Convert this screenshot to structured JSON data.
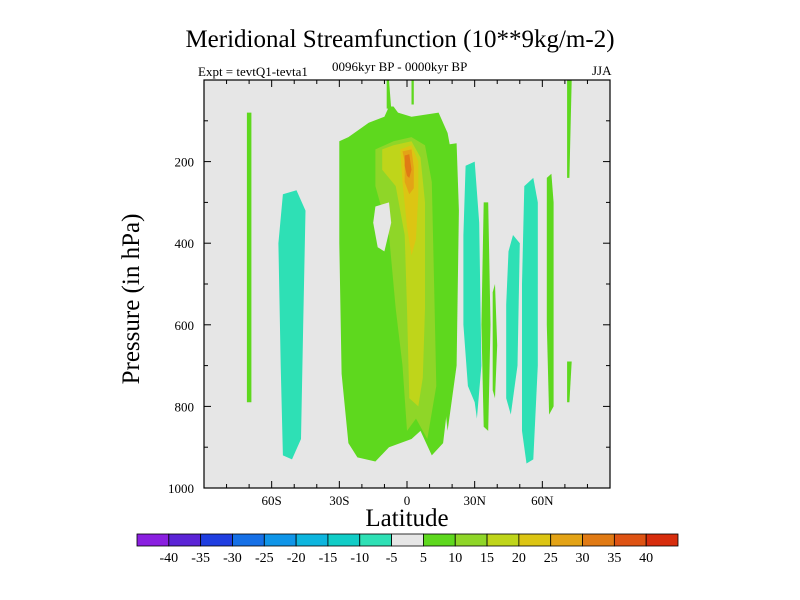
{
  "chart_data": {
    "type": "heatmap",
    "title": "Meridional Streamfunction (10**9kg/m-2)",
    "subtitle": "0096kyr BP - 0000kyr BP",
    "left_label": "Expt = tevtQ1-tevta1",
    "right_label": "JJA",
    "xlabel": "Latitude",
    "ylabel": "Pressure (in hPa)",
    "xlim": [
      -90,
      90
    ],
    "ylim": [
      1000,
      0
    ],
    "x_ticks": [
      {
        "value": -60,
        "label": "60S"
      },
      {
        "value": -30,
        "label": "30S"
      },
      {
        "value": 0,
        "label": "0"
      },
      {
        "value": 30,
        "label": "30N"
      },
      {
        "value": 60,
        "label": "60N"
      }
    ],
    "y_ticks": [
      {
        "value": 200,
        "label": "200"
      },
      {
        "value": 400,
        "label": "400"
      },
      {
        "value": 600,
        "label": "600"
      },
      {
        "value": 800,
        "label": "800"
      },
      {
        "value": 1000,
        "label": "1000"
      }
    ],
    "missing_color": "#e6e6e6",
    "colorbar": {
      "labels": [
        "-40",
        "-35",
        "-30",
        "-25",
        "-20",
        "-15",
        "-10",
        "-5",
        "5",
        "10",
        "15",
        "20",
        "25",
        "30",
        "35",
        "40"
      ],
      "colors": [
        "#8a1fe0",
        "#5b24d6",
        "#1f3ee0",
        "#1670e6",
        "#0f95e8",
        "#0db5de",
        "#11cdc7",
        "#2ee0b5",
        "#e6e6e6",
        "#5ed81e",
        "#8fd628",
        "#bfd51a",
        "#dcc513",
        "#e3a316",
        "#e07a14",
        "#de5313",
        "#d72d0d"
      ]
    },
    "regions": [
      {
        "name": "green-band-58S",
        "level": "5 to 10",
        "color": "#5ed81e",
        "polygon": [
          [
            -71,
            80
          ],
          [
            -69,
            80
          ],
          [
            -69,
            790
          ],
          [
            -71,
            790
          ]
        ]
      },
      {
        "name": "cyan-cell-50S",
        "level": "-10 to -5",
        "color": "#2ee0b5",
        "polygon": [
          [
            -55,
            280
          ],
          [
            -49,
            270
          ],
          [
            -45,
            320
          ],
          [
            -46,
            600
          ],
          [
            -47,
            880
          ],
          [
            -51,
            930
          ],
          [
            -55,
            920
          ],
          [
            -56,
            700
          ],
          [
            -57,
            400
          ]
        ]
      },
      {
        "name": "green-tropics",
        "level": "5 to 10",
        "color": "#5ed81e",
        "polygon": [
          [
            -30,
            150
          ],
          [
            -26,
            140
          ],
          [
            -17,
            105
          ],
          [
            -10,
            90
          ],
          [
            -8,
            65
          ],
          [
            -6,
            65
          ],
          [
            -4,
            80
          ],
          [
            2,
            90
          ],
          [
            14,
            80
          ],
          [
            18,
            130
          ],
          [
            20,
            190
          ],
          [
            20,
            600
          ],
          [
            19,
            750
          ],
          [
            16,
            890
          ],
          [
            11,
            920
          ],
          [
            6,
            860
          ],
          [
            2,
            880
          ],
          [
            -8,
            900
          ],
          [
            -14,
            935
          ],
          [
            -22,
            925
          ],
          [
            -26,
            890
          ],
          [
            -29,
            720
          ],
          [
            -30,
            400
          ]
        ]
      },
      {
        "name": "yellowgreen-core",
        "level": "10 to 15",
        "color": "#8fd628",
        "polygon": [
          [
            -14,
            170
          ],
          [
            -6,
            150
          ],
          [
            2,
            140
          ],
          [
            8,
            160
          ],
          [
            11,
            250
          ],
          [
            12,
            500
          ],
          [
            13,
            750
          ],
          [
            9,
            880
          ],
          [
            4,
            830
          ],
          [
            0,
            860
          ],
          [
            -2,
            700
          ],
          [
            -5,
            560
          ],
          [
            -8,
            380
          ],
          [
            -14,
            260
          ]
        ]
      },
      {
        "name": "yellow-core",
        "level": "15 to 20",
        "color": "#bfd51a",
        "polygon": [
          [
            -11,
            170
          ],
          [
            -6,
            160
          ],
          [
            2,
            150
          ],
          [
            6,
            190
          ],
          [
            8,
            300
          ],
          [
            8,
            560
          ],
          [
            7,
            730
          ],
          [
            5,
            800
          ],
          [
            1,
            780
          ],
          [
            0,
            560
          ],
          [
            -1,
            380
          ],
          [
            -5,
            260
          ],
          [
            -11,
            220
          ]
        ]
      },
      {
        "name": "gold-core",
        "level": "20 to 25",
        "color": "#dcc513",
        "polygon": [
          [
            -3,
            170
          ],
          [
            2,
            160
          ],
          [
            5,
            200
          ],
          [
            5,
            280
          ],
          [
            4,
            390
          ],
          [
            2,
            430
          ],
          [
            0,
            360
          ],
          [
            -2,
            250
          ]
        ]
      },
      {
        "name": "orange-core",
        "level": "25 to 30",
        "color": "#e3a316",
        "polygon": [
          [
            -2,
            175
          ],
          [
            2,
            170
          ],
          [
            3,
            215
          ],
          [
            3,
            265
          ],
          [
            1,
            280
          ],
          [
            -1,
            250
          ],
          [
            -1,
            200
          ]
        ]
      },
      {
        "name": "dark-orange-core",
        "level": "30 to 35",
        "color": "#e07a14",
        "polygon": [
          [
            -1,
            185
          ],
          [
            1,
            182
          ],
          [
            2,
            220
          ],
          [
            1,
            240
          ],
          [
            0,
            235
          ],
          [
            -1,
            210
          ]
        ]
      },
      {
        "name": "gray-hole",
        "level": "-5 to 5",
        "color": "#e6e6e6",
        "polygon": [
          [
            -14,
            310
          ],
          [
            -8,
            300
          ],
          [
            -7,
            350
          ],
          [
            -10,
            420
          ],
          [
            -13,
            410
          ],
          [
            -15,
            350
          ]
        ]
      },
      {
        "name": "green-column-15N",
        "level": "5 to 10",
        "color": "#5ed81e",
        "polygon": [
          [
            16,
            160
          ],
          [
            22,
            155
          ],
          [
            23,
            320
          ],
          [
            22,
            700
          ],
          [
            18,
            860
          ],
          [
            15,
            700
          ],
          [
            15,
            400
          ]
        ]
      },
      {
        "name": "cyan-cell-28N",
        "level": "-10 to -5",
        "color": "#2ee0b5",
        "polygon": [
          [
            26,
            210
          ],
          [
            30,
            200
          ],
          [
            32,
            350
          ],
          [
            33,
            700
          ],
          [
            31,
            830
          ],
          [
            30,
            790
          ],
          [
            27,
            750
          ],
          [
            25,
            600
          ],
          [
            25,
            380
          ]
        ]
      },
      {
        "name": "green-column-36N",
        "level": "5 to 10",
        "color": "#5ed81e",
        "polygon": [
          [
            34,
            300
          ],
          [
            36,
            300
          ],
          [
            37,
            600
          ],
          [
            36,
            860
          ],
          [
            34,
            850
          ],
          [
            33,
            600
          ]
        ]
      },
      {
        "name": "green-cell-38N",
        "level": "5 to 10",
        "color": "#5ed81e",
        "polygon": [
          [
            38,
            520
          ],
          [
            39,
            500
          ],
          [
            40,
            650
          ],
          [
            39,
            780
          ],
          [
            38,
            760
          ]
        ]
      },
      {
        "name": "cyan-cell-45N",
        "level": "-10 to -5",
        "color": "#2ee0b5",
        "polygon": [
          [
            45,
            420
          ],
          [
            47,
            380
          ],
          [
            50,
            400
          ],
          [
            49,
            700
          ],
          [
            46,
            820
          ],
          [
            44,
            780
          ],
          [
            44,
            550
          ]
        ]
      },
      {
        "name": "cyan-cell-55N",
        "level": "-10 to -5",
        "color": "#2ee0b5",
        "polygon": [
          [
            52,
            260
          ],
          [
            56,
            240
          ],
          [
            58,
            300
          ],
          [
            58,
            700
          ],
          [
            56,
            930
          ],
          [
            53,
            940
          ],
          [
            51,
            860
          ],
          [
            51,
            500
          ]
        ]
      },
      {
        "name": "green-cell-63N",
        "level": "5 to 10",
        "color": "#5ed81e",
        "polygon": [
          [
            62,
            240
          ],
          [
            64,
            230
          ],
          [
            65,
            300
          ],
          [
            65,
            800
          ],
          [
            63,
            820
          ],
          [
            62,
            600
          ]
        ]
      },
      {
        "name": "green-band-72N",
        "level": "5 to 10",
        "color": "#5ed81e",
        "polygon": [
          [
            71,
            0
          ],
          [
            73,
            0
          ],
          [
            72,
            240
          ],
          [
            71,
            240
          ]
        ]
      },
      {
        "name": "green-band-72N-low",
        "level": "5 to 10",
        "color": "#5ed81e",
        "polygon": [
          [
            71,
            690
          ],
          [
            73,
            690
          ],
          [
            72,
            790
          ],
          [
            71,
            790
          ]
        ]
      },
      {
        "name": "green-top-equator",
        "level": "5 to 10",
        "color": "#5ed81e",
        "polygon": [
          [
            -9,
            0
          ],
          [
            -8,
            0
          ],
          [
            -7,
            70
          ],
          [
            -9,
            70
          ]
        ]
      },
      {
        "name": "green-top-equator-2",
        "level": "5 to 10",
        "color": "#5ed81e",
        "polygon": [
          [
            2,
            0
          ],
          [
            3,
            0
          ],
          [
            3,
            60
          ],
          [
            2,
            60
          ]
        ]
      }
    ]
  }
}
